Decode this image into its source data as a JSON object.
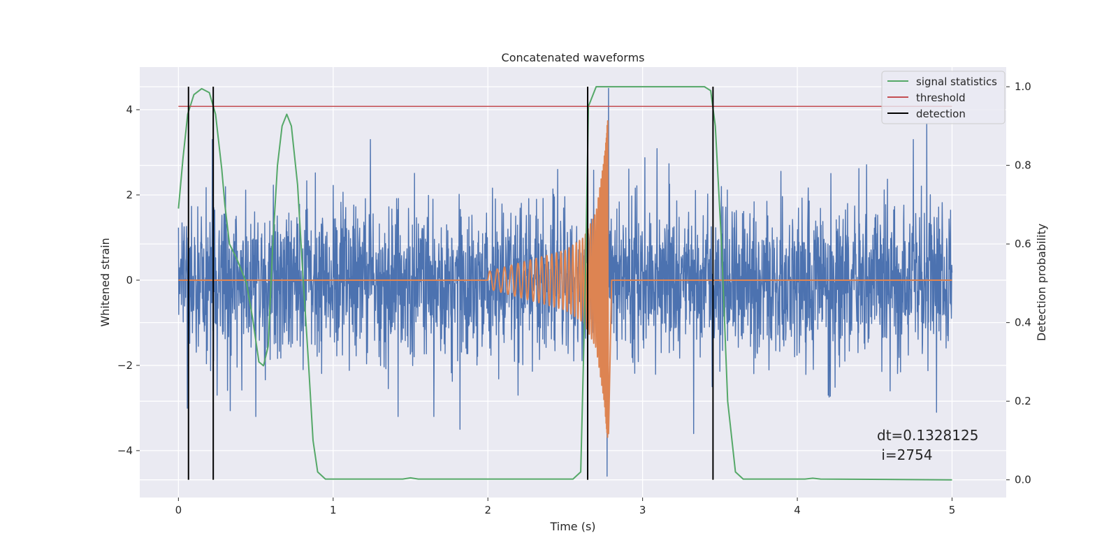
{
  "chart_data": {
    "type": "line",
    "title": "Concatenated waveforms",
    "xlabel": "Time (s)",
    "ylabel_left": "Whitened strain",
    "ylabel_right": "Detection probability",
    "xlim": [
      -0.25,
      5.35
    ],
    "ylim_left": [
      -5.1,
      5.0
    ],
    "ylim_right": [
      -0.045,
      1.05
    ],
    "x_ticks": [
      0,
      1,
      2,
      3,
      4,
      5
    ],
    "x_tick_labels": [
      "0",
      "1",
      "2",
      "3",
      "4",
      "5"
    ],
    "y_left_ticks": [
      -4,
      -2,
      0,
      2,
      4
    ],
    "y_left_tick_labels": [
      "−4",
      "−2",
      "0",
      "2",
      "4"
    ],
    "y_right_ticks": [
      0.0,
      0.2,
      0.4,
      0.6,
      0.8,
      1.0
    ],
    "y_right_tick_labels": [
      "0.0",
      "0.2",
      "0.4",
      "0.6",
      "0.8",
      "1.0"
    ],
    "grid": true,
    "legend_position": "top-right",
    "series": [
      {
        "id": "strain",
        "axis": "left",
        "color": "#4c72b0",
        "kind": "noise",
        "x_range": [
          0,
          5
        ],
        "sigma": 0.9,
        "seed": 2754,
        "spikes": [
          {
            "x": 0.22,
            "y": 3.3
          },
          {
            "x": 0.25,
            "y": -2.7
          },
          {
            "x": 0.5,
            "y": -3.2
          },
          {
            "x": 1.24,
            "y": 3.3
          },
          {
            "x": 1.42,
            "y": -3.2
          },
          {
            "x": 1.65,
            "y": -3.2
          },
          {
            "x": 1.82,
            "y": -3.5
          },
          {
            "x": 2.45,
            "y": 2.6
          },
          {
            "x": 2.77,
            "y": -4.7
          },
          {
            "x": 2.78,
            "y": 4.5
          },
          {
            "x": 3.33,
            "y": -3.6
          },
          {
            "x": 3.45,
            "y": -2.5
          },
          {
            "x": 4.2,
            "y": -2.7
          },
          {
            "x": 4.6,
            "y": -2.6
          },
          {
            "x": 4.75,
            "y": 3.3
          },
          {
            "x": 4.9,
            "y": -3.1
          }
        ]
      },
      {
        "id": "signal",
        "axis": "left",
        "color": "#dd8452",
        "kind": "chirp",
        "x_range": [
          0,
          5
        ],
        "chirp_start": 2.0,
        "merger": 2.775,
        "points": [
          [
            0,
            0
          ],
          [
            2.0,
            0
          ],
          [
            2.0,
            0.2
          ],
          [
            2.3,
            0.5
          ],
          [
            2.5,
            0.7
          ],
          [
            2.62,
            1.0
          ],
          [
            2.7,
            1.6
          ],
          [
            2.75,
            2.8
          ],
          [
            2.775,
            3.8
          ],
          [
            2.78,
            -3.6
          ],
          [
            2.8,
            0
          ],
          [
            5.0,
            0
          ]
        ]
      },
      {
        "id": "stat",
        "name": "signal statistics",
        "axis": "right",
        "color": "#55a868",
        "points": [
          [
            0.0,
            0.69
          ],
          [
            0.03,
            0.82
          ],
          [
            0.06,
            0.93
          ],
          [
            0.1,
            0.98
          ],
          [
            0.15,
            0.995
          ],
          [
            0.2,
            0.985
          ],
          [
            0.24,
            0.93
          ],
          [
            0.28,
            0.79
          ],
          [
            0.3,
            0.7
          ],
          [
            0.33,
            0.6
          ],
          [
            0.38,
            0.56
          ],
          [
            0.44,
            0.5
          ],
          [
            0.48,
            0.41
          ],
          [
            0.52,
            0.3
          ],
          [
            0.55,
            0.29
          ],
          [
            0.58,
            0.34
          ],
          [
            0.61,
            0.6
          ],
          [
            0.64,
            0.8
          ],
          [
            0.67,
            0.9
          ],
          [
            0.7,
            0.93
          ],
          [
            0.73,
            0.9
          ],
          [
            0.77,
            0.75
          ],
          [
            0.8,
            0.55
          ],
          [
            0.84,
            0.3
          ],
          [
            0.87,
            0.1
          ],
          [
            0.9,
            0.02
          ],
          [
            0.95,
            0.002
          ],
          [
            1.45,
            0.002
          ],
          [
            1.5,
            0.005
          ],
          [
            1.55,
            0.002
          ],
          [
            2.55,
            0.002
          ],
          [
            2.6,
            0.02
          ],
          [
            2.63,
            0.5
          ],
          [
            2.65,
            0.95
          ],
          [
            2.7,
            1.0
          ],
          [
            3.4,
            1.0
          ],
          [
            3.44,
            0.99
          ],
          [
            3.47,
            0.9
          ],
          [
            3.51,
            0.6
          ],
          [
            3.55,
            0.2
          ],
          [
            3.6,
            0.02
          ],
          [
            3.65,
            0.002
          ],
          [
            4.05,
            0.002
          ],
          [
            4.1,
            0.004
          ],
          [
            4.15,
            0.002
          ],
          [
            5.0,
            0.0
          ]
        ]
      },
      {
        "id": "threshold",
        "name": "threshold",
        "axis": "right",
        "color": "#c44e52",
        "points": [
          [
            0,
            0.95
          ],
          [
            5,
            0.95
          ]
        ]
      },
      {
        "id": "detection",
        "name": "detection",
        "axis": "right",
        "color": "#000000",
        "kind": "vlines",
        "x": [
          0.065,
          0.225,
          2.645,
          3.455
        ],
        "y_range": [
          0.0,
          1.0
        ]
      }
    ],
    "legend": [
      {
        "label": "signal statistics",
        "color": "#55a868"
      },
      {
        "label": "threshold",
        "color": "#c44e52"
      },
      {
        "label": "detection",
        "color": "#000000"
      }
    ],
    "annotation": {
      "line1": "dt=0.1328125",
      "line2": " i=2754"
    }
  }
}
